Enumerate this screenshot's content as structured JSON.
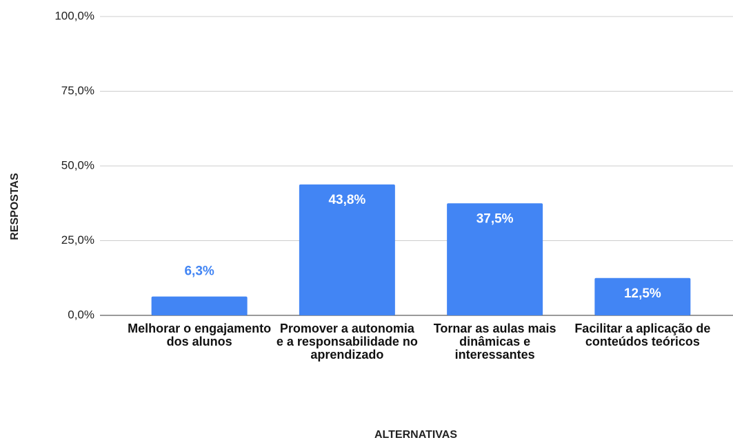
{
  "chart_data": {
    "type": "bar",
    "x_label": "ALTERNATIVAS",
    "y_label": "RESPOSTAS",
    "categories": [
      "Melhorar o engajamento dos alunos",
      "Promover a autonomia e a responsabilidade no aprendizado",
      "Tornar as aulas mais dinâmicas e interessantes",
      "Facilitar a aplicação de conteúdos teóricos"
    ],
    "values": [
      6.3,
      43.8,
      37.5,
      12.5
    ],
    "value_labels": [
      "6,3%",
      "43,8%",
      "37,5%",
      "12,5%"
    ],
    "color": "#4285f4",
    "ylim": [
      0,
      100
    ],
    "yticks": [
      {
        "value": 0,
        "label": "0,0%"
      },
      {
        "value": 25,
        "label": "25,0%"
      },
      {
        "value": 50,
        "label": "50,0%"
      },
      {
        "value": 75,
        "label": "75,0%"
      },
      {
        "value": 100,
        "label": "100,0%"
      }
    ],
    "grid": true
  }
}
